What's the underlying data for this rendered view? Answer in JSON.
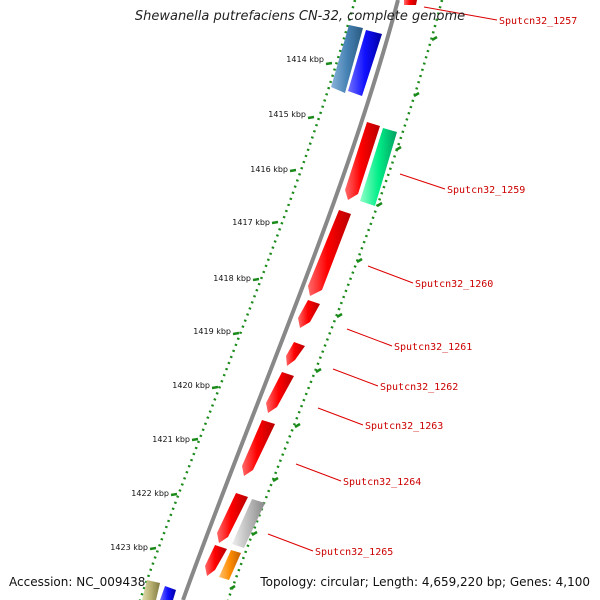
{
  "map": {
    "title": "Shewanella putrefaciens CN-32, complete genome",
    "accession": "Accession: NC_009438",
    "summary": "Topology: circular; Length: 4,659,220 bp; Genes: 4,100",
    "ruler_labels": [
      "1414 kbp",
      "1415 kbp",
      "1416 kbp",
      "1417 kbp",
      "1418 kbp",
      "1419 kbp",
      "1420 kbp",
      "1421 kbp",
      "1422 kbp",
      "1423 kbp"
    ],
    "gene_labels": [
      "Sputcn32_1257",
      "Sputcn32_1259",
      "Sputcn32_1260",
      "Sputcn32_1261",
      "Sputcn32_1262",
      "Sputcn32_1263",
      "Sputcn32_1264",
      "Sputcn32_1265"
    ]
  },
  "colors": {
    "forward_gene": "#ff0000",
    "blue_gene": "#1010ff",
    "steelblue_gene": "#4682b4",
    "teal_gene": "#00ee88",
    "gray_gene": "#bbbbbb",
    "orange_gene": "#ff8c00",
    "olive_gene": "#b8b070",
    "backbone": "#888888",
    "ruler_ticks": "#1a8a1a",
    "label_line": "#dd0000"
  }
}
